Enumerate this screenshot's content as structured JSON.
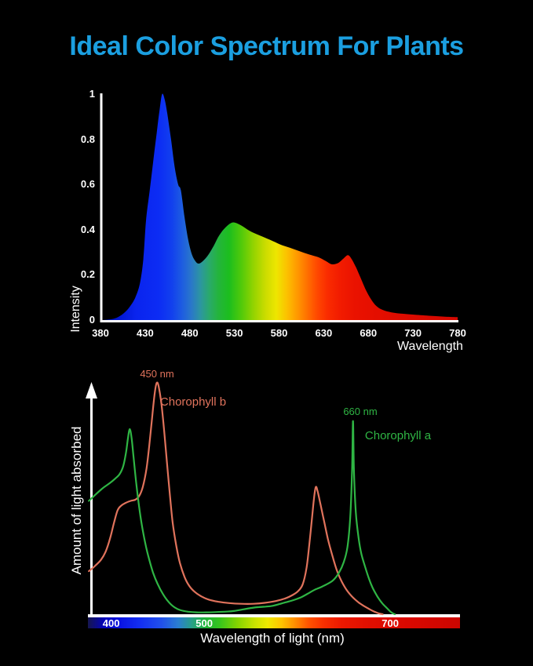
{
  "page": {
    "title": "Ideal Color Spectrum For Plants",
    "title_color": "#1b9fe0",
    "background": "#000000"
  },
  "chart_data": [
    {
      "type": "area",
      "title": "",
      "xlabel": "Wavelength",
      "ylabel": "Intensity",
      "xlim": [
        380,
        780
      ],
      "ylim": [
        0,
        1
      ],
      "grid": false,
      "legend": "none",
      "xticks": [
        "380",
        "430",
        "480",
        "530",
        "580",
        "630",
        "680",
        "730",
        "780"
      ],
      "yticks": [
        "1",
        "0.8",
        "0.6",
        "0.4",
        "0.2",
        "0"
      ],
      "series": [
        {
          "name": "light-intensity-spectrum",
          "points": [
            [
              380,
              0
            ],
            [
              390,
              0.003
            ],
            [
              398,
              0.01
            ],
            [
              406,
              0.03
            ],
            [
              413,
              0.06
            ],
            [
              419,
              0.1
            ],
            [
              424,
              0.16
            ],
            [
              428,
              0.27
            ],
            [
              431,
              0.44
            ],
            [
              435,
              0.57
            ],
            [
              439,
              0.7
            ],
            [
              443,
              0.83
            ],
            [
              446,
              0.925
            ],
            [
              449,
              1.0
            ],
            [
              452,
              0.975
            ],
            [
              455,
              0.91
            ],
            [
              459,
              0.8
            ],
            [
              463,
              0.68
            ],
            [
              467,
              0.6
            ],
            [
              470,
              0.575
            ],
            [
              474,
              0.46
            ],
            [
              478,
              0.36
            ],
            [
              482,
              0.295
            ],
            [
              486,
              0.262
            ],
            [
              490,
              0.25
            ],
            [
              495,
              0.262
            ],
            [
              501,
              0.29
            ],
            [
              507,
              0.33
            ],
            [
              513,
              0.375
            ],
            [
              520,
              0.41
            ],
            [
              528,
              0.432
            ],
            [
              537,
              0.42
            ],
            [
              547,
              0.395
            ],
            [
              558,
              0.375
            ],
            [
              570,
              0.355
            ],
            [
              581,
              0.335
            ],
            [
              592,
              0.32
            ],
            [
              603,
              0.305
            ],
            [
              614,
              0.29
            ],
            [
              624,
              0.278
            ],
            [
              632,
              0.262
            ],
            [
              639,
              0.247
            ],
            [
              646,
              0.252
            ],
            [
              652,
              0.272
            ],
            [
              657,
              0.287
            ],
            [
              661,
              0.272
            ],
            [
              666,
              0.235
            ],
            [
              671,
              0.19
            ],
            [
              677,
              0.135
            ],
            [
              683,
              0.092
            ],
            [
              689,
              0.062
            ],
            [
              696,
              0.045
            ],
            [
              706,
              0.034
            ],
            [
              718,
              0.028
            ],
            [
              734,
              0.023
            ],
            [
              752,
              0.018
            ],
            [
              766,
              0.015
            ],
            [
              780,
              0.013
            ]
          ]
        }
      ],
      "gradient_stops": [
        [
          380,
          "#000c96"
        ],
        [
          400,
          "#0016d2"
        ],
        [
          420,
          "#0a24ee"
        ],
        [
          445,
          "#0c2cf4"
        ],
        [
          460,
          "#1240ee"
        ],
        [
          472,
          "#1e5ee0"
        ],
        [
          482,
          "#2a78c8"
        ],
        [
          492,
          "#2c96a0"
        ],
        [
          502,
          "#2aaa6a"
        ],
        [
          512,
          "#24b43c"
        ],
        [
          524,
          "#1cbe1e"
        ],
        [
          538,
          "#52ca0a"
        ],
        [
          552,
          "#96d400"
        ],
        [
          565,
          "#ccdc00"
        ],
        [
          577,
          "#eee600"
        ],
        [
          589,
          "#fcc000"
        ],
        [
          600,
          "#ff9a00"
        ],
        [
          611,
          "#ff7200"
        ],
        [
          622,
          "#ff4a00"
        ],
        [
          634,
          "#fa2c00"
        ],
        [
          648,
          "#f21c00"
        ],
        [
          665,
          "#ea1200"
        ],
        [
          690,
          "#e40e00"
        ],
        [
          730,
          "#dc0a00"
        ],
        [
          780,
          "#d40800"
        ]
      ]
    },
    {
      "type": "line",
      "title": "",
      "xlabel": "Wavelength of light (nm)",
      "ylabel": "Amount of light absorbed",
      "xlim": [
        375,
        775
      ],
      "ylim": [
        0,
        1.05
      ],
      "grid": false,
      "legend": "inline-annotations",
      "colorbar": {
        "ticks": [
          {
            "label": "400",
            "nm": 400
          },
          {
            "label": "500",
            "nm": 500
          },
          {
            "label": "700",
            "nm": 700
          }
        ]
      },
      "colorbar_stops": [
        [
          375,
          "#16164e"
        ],
        [
          392,
          "#0404b8"
        ],
        [
          410,
          "#0a14e4"
        ],
        [
          432,
          "#1430f2"
        ],
        [
          455,
          "#2252ea"
        ],
        [
          472,
          "#2a7ed2"
        ],
        [
          487,
          "#28a086"
        ],
        [
          500,
          "#1eb43c"
        ],
        [
          516,
          "#34c41e"
        ],
        [
          536,
          "#86d400"
        ],
        [
          554,
          "#c8e200"
        ],
        [
          568,
          "#eeea00"
        ],
        [
          583,
          "#ffc400"
        ],
        [
          597,
          "#ff9000"
        ],
        [
          612,
          "#ff5400"
        ],
        [
          628,
          "#f83000"
        ],
        [
          648,
          "#ec1800"
        ],
        [
          680,
          "#e00e00"
        ],
        [
          720,
          "#da0800"
        ],
        [
          775,
          "#cc0600"
        ]
      ],
      "series": [
        {
          "name": "Chorophyll b",
          "color": "#e0735c",
          "peak_label": "450 nm",
          "peak_nm": 450,
          "points": [
            [
              376,
              0.186
            ],
            [
              383,
              0.21
            ],
            [
              389,
              0.235
            ],
            [
              394,
              0.27
            ],
            [
              399,
              0.33
            ],
            [
              403,
              0.395
            ],
            [
              407,
              0.45
            ],
            [
              411,
              0.47
            ],
            [
              416,
              0.482
            ],
            [
              421,
              0.49
            ],
            [
              426,
              0.495
            ],
            [
              430,
              0.51
            ],
            [
              434,
              0.55
            ],
            [
              438,
              0.63
            ],
            [
              441,
              0.73
            ],
            [
              444,
              0.85
            ],
            [
              447,
              0.96
            ],
            [
              449,
              1.0
            ],
            [
              451,
              0.985
            ],
            [
              454,
              0.91
            ],
            [
              457,
              0.79
            ],
            [
              460,
              0.655
            ],
            [
              463,
              0.52
            ],
            [
              466,
              0.4
            ],
            [
              470,
              0.295
            ],
            [
              474,
              0.22
            ],
            [
              479,
              0.16
            ],
            [
              484,
              0.122
            ],
            [
              490,
              0.096
            ],
            [
              497,
              0.077
            ],
            [
              505,
              0.063
            ],
            [
              515,
              0.054
            ],
            [
              527,
              0.048
            ],
            [
              540,
              0.045
            ],
            [
              553,
              0.045
            ],
            [
              565,
              0.049
            ],
            [
              577,
              0.057
            ],
            [
              587,
              0.068
            ],
            [
              595,
              0.083
            ],
            [
              601,
              0.1
            ],
            [
              606,
              0.13
            ],
            [
              610,
              0.2
            ],
            [
              613,
              0.3
            ],
            [
              616,
              0.42
            ],
            [
              618,
              0.5
            ],
            [
              620,
              0.55
            ],
            [
              622,
              0.53
            ],
            [
              625,
              0.475
            ],
            [
              629,
              0.4
            ],
            [
              633,
              0.325
            ],
            [
              638,
              0.25
            ],
            [
              643,
              0.185
            ],
            [
              648,
              0.14
            ],
            [
              654,
              0.1
            ],
            [
              660,
              0.072
            ],
            [
              666,
              0.051
            ],
            [
              672,
              0.035
            ],
            [
              678,
              0.021
            ],
            [
              683,
              0.011
            ],
            [
              688,
              0.003
            ],
            [
              692,
              0
            ]
          ]
        },
        {
          "name": "Chorophyll a",
          "color": "#2fb544",
          "peak_label": "660 nm",
          "peak_nm": 660,
          "points": [
            [
              376,
              0.49
            ],
            [
              384,
              0.52
            ],
            [
              391,
              0.545
            ],
            [
              398,
              0.565
            ],
            [
              404,
              0.585
            ],
            [
              409,
              0.605
            ],
            [
              413,
              0.64
            ],
            [
              416,
              0.7
            ],
            [
              418,
              0.76
            ],
            [
              420,
              0.8
            ],
            [
              422,
              0.76
            ],
            [
              424,
              0.68
            ],
            [
              427,
              0.565
            ],
            [
              430,
              0.465
            ],
            [
              433,
              0.385
            ],
            [
              437,
              0.3
            ],
            [
              441,
              0.235
            ],
            [
              445,
              0.18
            ],
            [
              450,
              0.13
            ],
            [
              456,
              0.085
            ],
            [
              462,
              0.052
            ],
            [
              468,
              0.03
            ],
            [
              475,
              0.017
            ],
            [
              483,
              0.011
            ],
            [
              492,
              0.008
            ],
            [
              502,
              0.008
            ],
            [
              512,
              0.009
            ],
            [
              522,
              0.011
            ],
            [
              532,
              0.014
            ],
            [
              542,
              0.021
            ],
            [
              551,
              0.027
            ],
            [
              559,
              0.031
            ],
            [
              566,
              0.033
            ],
            [
              573,
              0.036
            ],
            [
              580,
              0.043
            ],
            [
              588,
              0.052
            ],
            [
              596,
              0.061
            ],
            [
              604,
              0.073
            ],
            [
              611,
              0.088
            ],
            [
              618,
              0.104
            ],
            [
              626,
              0.118
            ],
            [
              633,
              0.132
            ],
            [
              639,
              0.148
            ],
            [
              645,
              0.18
            ],
            [
              650,
              0.225
            ],
            [
              654,
              0.29
            ],
            [
              657,
              0.42
            ],
            [
              659,
              0.62
            ],
            [
              660,
              0.835
            ],
            [
              661,
              0.62
            ],
            [
              663,
              0.44
            ],
            [
              666,
              0.33
            ],
            [
              669,
              0.26
            ],
            [
              673,
              0.205
            ],
            [
              677,
              0.155
            ],
            [
              681,
              0.115
            ],
            [
              686,
              0.078
            ],
            [
              691,
              0.049
            ],
            [
              696,
              0.028
            ],
            [
              700,
              0.012
            ],
            [
              703,
              0.003
            ],
            [
              705,
              0
            ]
          ]
        }
      ]
    }
  ]
}
